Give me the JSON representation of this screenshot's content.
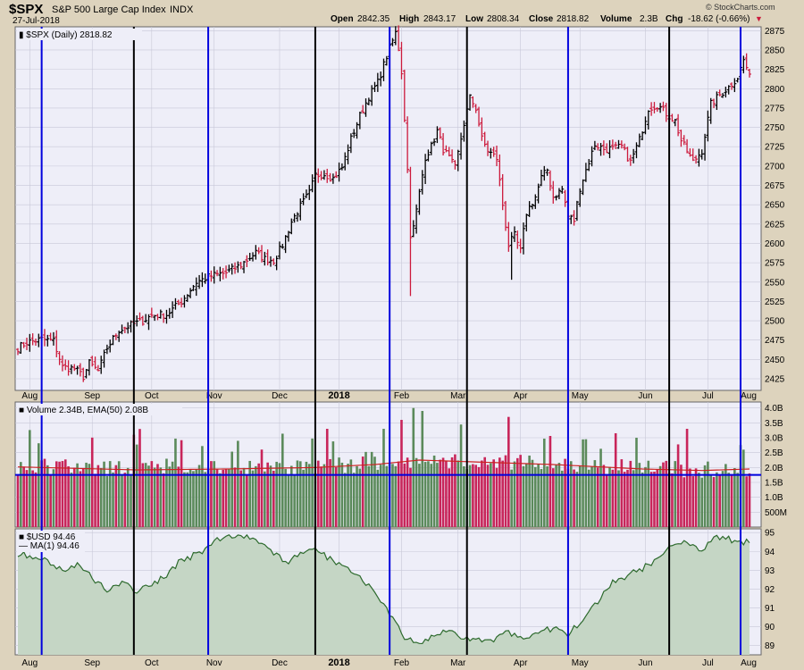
{
  "header": {
    "symbol": "$SPX",
    "name": "S&P 500 Large Cap Index",
    "exchange": "INDX",
    "date": "27-Jul-2018",
    "open_label": "Open",
    "open": "2842.35",
    "high_label": "High",
    "high": "2843.17",
    "low_label": "Low",
    "low": "2808.34",
    "close_label": "Close",
    "close": "2818.82",
    "volume_label": "Volume",
    "volume": "2.3B",
    "chg_label": "Chg",
    "chg": "-18.62 (-0.66%)",
    "copyright": "© StockCharts.com"
  },
  "colors": {
    "up": "#000000",
    "down": "#cc1a3c",
    "vol_up": "#5b8a5b",
    "vol_down": "#c8255a",
    "ema": "#cc2222",
    "usd_line": "#2d6a2d",
    "usd_fill": "#c5d6c5",
    "blue_line": "#0000dd",
    "black_line": "#000000",
    "panel_bg": "#eeeef8"
  },
  "chart_data": [
    {
      "type": "ohlc",
      "legend": "$SPX (Daily) 2818.82",
      "ylim": [
        2410,
        2880
      ],
      "yticks": [
        2425,
        2450,
        2475,
        2500,
        2525,
        2550,
        2575,
        2600,
        2625,
        2650,
        2675,
        2700,
        2725,
        2750,
        2775,
        2800,
        2825,
        2850,
        2875
      ],
      "xticks": [
        "Aug",
        "Sep",
        "Oct",
        "Nov",
        "Dec",
        "2018",
        "Feb",
        "Mar",
        "Apr",
        "May",
        "Jun",
        "Jul",
        "Aug"
      ],
      "anchors": [
        [
          0,
          2465
        ],
        [
          3,
          2472
        ],
        [
          8,
          2476
        ],
        [
          12,
          2474
        ],
        [
          15,
          2440
        ],
        [
          19,
          2438
        ],
        [
          22,
          2428
        ],
        [
          24,
          2445
        ],
        [
          27,
          2435
        ],
        [
          30,
          2465
        ],
        [
          34,
          2488
        ],
        [
          39,
          2496
        ],
        [
          42,
          2500
        ],
        [
          45,
          2507
        ],
        [
          50,
          2508
        ],
        [
          55,
          2525
        ],
        [
          60,
          2550
        ],
        [
          65,
          2558
        ],
        [
          70,
          2562
        ],
        [
          75,
          2572
        ],
        [
          78,
          2582
        ],
        [
          80,
          2588
        ],
        [
          83,
          2580
        ],
        [
          86,
          2578
        ],
        [
          89,
          2598
        ],
        [
          92,
          2628
        ],
        [
          95,
          2648
        ],
        [
          98,
          2665
        ],
        [
          100,
          2688
        ],
        [
          103,
          2690
        ],
        [
          106,
          2684
        ],
        [
          109,
          2698
        ],
        [
          112,
          2735
        ],
        [
          115,
          2765
        ],
        [
          118,
          2790
        ],
        [
          121,
          2808
        ],
        [
          124,
          2842
        ],
        [
          127,
          2872
        ],
        [
          128,
          2852
        ],
        [
          129,
          2822
        ],
        [
          130,
          2762
        ],
        [
          131,
          2695
        ],
        [
          132,
          2612
        ],
        [
          133,
          2620
        ],
        [
          135,
          2665
        ],
        [
          137,
          2712
        ],
        [
          139,
          2725
        ],
        [
          141,
          2745
        ],
        [
          143,
          2722
        ],
        [
          145,
          2710
        ],
        [
          147,
          2697
        ],
        [
          150,
          2755
        ],
        [
          152,
          2788
        ],
        [
          154,
          2775
        ],
        [
          156,
          2735
        ],
        [
          158,
          2720
        ],
        [
          161,
          2710
        ],
        [
          163,
          2650
        ],
        [
          165,
          2598
        ],
        [
          167,
          2610
        ],
        [
          169,
          2590
        ],
        [
          171,
          2640
        ],
        [
          174,
          2660
        ],
        [
          176,
          2685
        ],
        [
          178,
          2695
        ],
        [
          180,
          2660
        ],
        [
          183,
          2670
        ],
        [
          185,
          2635
        ],
        [
          187,
          2630
        ],
        [
          189,
          2672
        ],
        [
          191,
          2695
        ],
        [
          194,
          2728
        ],
        [
          197,
          2722
        ],
        [
          200,
          2722
        ],
        [
          203,
          2725
        ],
        [
          206,
          2705
        ],
        [
          209,
          2734
        ],
        [
          212,
          2775
        ],
        [
          215,
          2779
        ],
        [
          218,
          2768
        ],
        [
          221,
          2758
        ],
        [
          223,
          2733
        ],
        [
          225,
          2719
        ],
        [
          227,
          2705
        ],
        [
          230,
          2720
        ],
        [
          233,
          2780
        ],
        [
          236,
          2792
        ],
        [
          239,
          2802
        ],
        [
          242,
          2815
        ],
        [
          244,
          2837
        ],
        [
          246,
          2818
        ]
      ],
      "count": 247,
      "last_close": 2818.82
    },
    {
      "type": "bar",
      "legend": "Volume 2.34B, EMA(50) 2.08B",
      "ylim": [
        0,
        4.2
      ],
      "yticks": [
        "500M",
        "1.0B",
        "1.5B",
        "2.0B",
        "2.5B",
        "3.0B",
        "3.5B",
        "4.0B"
      ],
      "ytick_values": [
        0.5,
        1.0,
        1.5,
        2.0,
        2.5,
        3.0,
        3.5,
        4.0
      ],
      "reference_line": 1.75,
      "ema_anchors": [
        [
          0,
          2.02
        ],
        [
          40,
          1.92
        ],
        [
          70,
          1.95
        ],
        [
          100,
          2.0
        ],
        [
          120,
          2.1
        ],
        [
          135,
          2.25
        ],
        [
          150,
          2.2
        ],
        [
          180,
          2.1
        ],
        [
          210,
          1.95
        ],
        [
          230,
          1.9
        ],
        [
          246,
          1.95
        ]
      ],
      "spikes": [
        [
          39,
          3.1
        ],
        [
          104,
          3.3
        ],
        [
          123,
          3.3
        ],
        [
          129,
          3.6
        ],
        [
          133,
          4.0
        ],
        [
          136,
          3.9
        ],
        [
          165,
          3.7
        ],
        [
          208,
          3.0
        ],
        [
          225,
          3.3
        ],
        [
          244,
          2.6
        ]
      ]
    },
    {
      "type": "area",
      "legend": "$USD 94.46",
      "legend2": "MA(1) 94.46",
      "ylim": [
        88.5,
        95.2
      ],
      "yticks": [
        89,
        90,
        91,
        92,
        93,
        94,
        95
      ],
      "anchors": [
        [
          0,
          93.9
        ],
        [
          10,
          93.5
        ],
        [
          15,
          93.0
        ],
        [
          20,
          93.3
        ],
        [
          25,
          92.6
        ],
        [
          30,
          92.0
        ],
        [
          35,
          92.3
        ],
        [
          40,
          91.9
        ],
        [
          45,
          92.2
        ],
        [
          50,
          92.7
        ],
        [
          55,
          93.6
        ],
        [
          60,
          93.8
        ],
        [
          65,
          94.4
        ],
        [
          70,
          94.8
        ],
        [
          75,
          94.9
        ],
        [
          80,
          94.7
        ],
        [
          85,
          94.0
        ],
        [
          90,
          93.4
        ],
        [
          95,
          93.8
        ],
        [
          100,
          94.1
        ],
        [
          105,
          93.6
        ],
        [
          110,
          93.2
        ],
        [
          115,
          92.6
        ],
        [
          120,
          92.0
        ],
        [
          125,
          90.6
        ],
        [
          130,
          89.4
        ],
        [
          135,
          89.0
        ],
        [
          140,
          89.5
        ],
        [
          145,
          89.8
        ],
        [
          150,
          89.4
        ],
        [
          155,
          89.3
        ],
        [
          160,
          89.3
        ],
        [
          165,
          89.7
        ],
        [
          170,
          89.4
        ],
        [
          175,
          89.8
        ],
        [
          180,
          89.9
        ],
        [
          185,
          89.6
        ],
        [
          190,
          90.3
        ],
        [
          195,
          91.3
        ],
        [
          200,
          92.4
        ],
        [
          205,
          92.7
        ],
        [
          210,
          93.1
        ],
        [
          215,
          93.6
        ],
        [
          220,
          94.4
        ],
        [
          225,
          94.6
        ],
        [
          230,
          94.0
        ],
        [
          235,
          94.8
        ],
        [
          240,
          94.6
        ],
        [
          246,
          94.46
        ]
      ]
    }
  ]
}
